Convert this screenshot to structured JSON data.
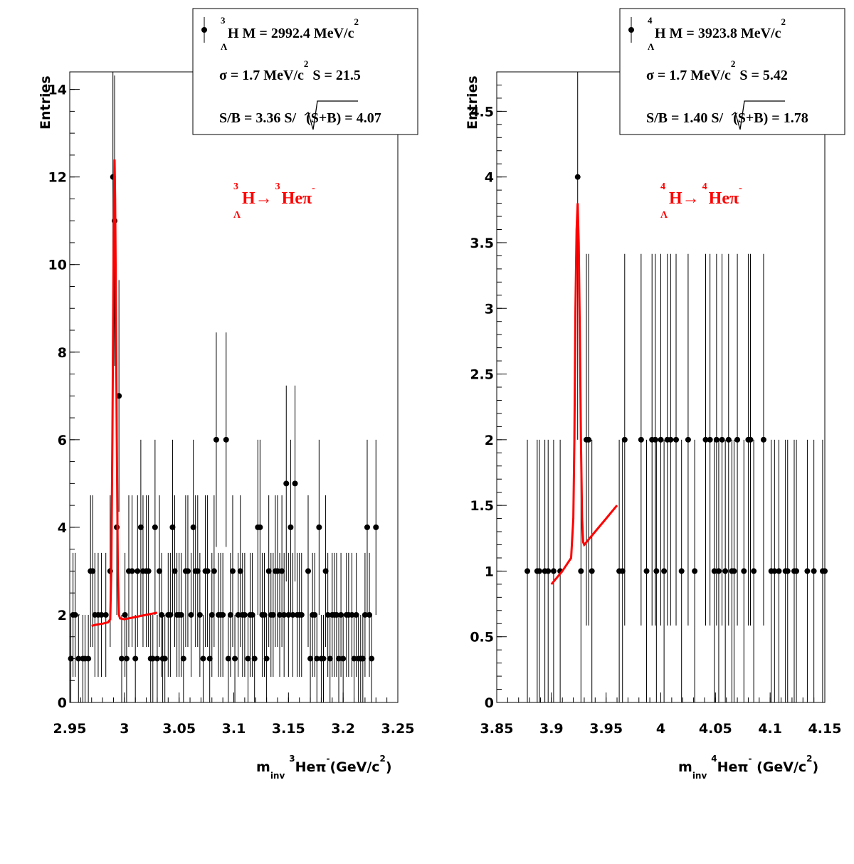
{
  "colors": {
    "data": "#000000",
    "fit": "#ff0000",
    "background": "#ffffff"
  },
  "chart_data": [
    {
      "type": "scatter",
      "ylabel": "Entries",
      "xlabel": {
        "main": "m",
        "sub": "inv",
        "sup1": "3",
        "mid": "Heπ",
        "sup2": "-",
        "tail": "(GeV/c",
        "sup3": "2",
        "end": ")"
      },
      "xlim": [
        2.95,
        3.25
      ],
      "ylim": [
        0,
        14.4
      ],
      "xticks": [
        "2.95",
        "3",
        "3.05",
        "3.1",
        "3.15",
        "3.2",
        "3.25"
      ],
      "yticks": [
        "0",
        "2",
        "4",
        "6",
        "8",
        "10",
        "12",
        "14"
      ],
      "grid": false,
      "legend": {
        "position": "top-right",
        "line1": {
          "sup": "3",
          "sub": "Λ",
          "text": "H M = 2992.4 MeV/c",
          "sup2": "2"
        },
        "line2": {
          "text": "σ = 1.7 MeV/c",
          "sup": "2",
          "tail": "S = 21.5"
        },
        "line3": {
          "a": "S/B = 3.36  S/",
          "b": "(S+B)",
          "c": " = 4.07"
        }
      },
      "annotation": {
        "sup1": "3",
        "sub": "Λ",
        "t1": "H→",
        "sup2": "3",
        "t2": "Heπ",
        "sup3": "-"
      },
      "points": [
        [
          2.951,
          1
        ],
        [
          2.953,
          2
        ],
        [
          2.955,
          2
        ],
        [
          2.958,
          1
        ],
        [
          2.962,
          1
        ],
        [
          2.964,
          1
        ],
        [
          2.967,
          1
        ],
        [
          2.969,
          3
        ],
        [
          2.971,
          3
        ],
        [
          2.973,
          2
        ],
        [
          2.976,
          2
        ],
        [
          2.979,
          2
        ],
        [
          2.983,
          2
        ],
        [
          2.987,
          3
        ],
        [
          2.9895,
          12
        ],
        [
          2.991,
          11
        ],
        [
          2.993,
          4
        ],
        [
          2.995,
          7
        ],
        [
          2.9975,
          1
        ],
        [
          3.0005,
          2
        ],
        [
          3.002,
          1
        ],
        [
          3.004,
          3
        ],
        [
          3.007,
          3
        ],
        [
          3.01,
          1
        ],
        [
          3.012,
          3
        ],
        [
          3.015,
          4
        ],
        [
          3.017,
          3
        ],
        [
          3.02,
          3
        ],
        [
          3.022,
          3
        ],
        [
          3.024,
          1
        ],
        [
          3.026,
          1
        ],
        [
          3.028,
          4
        ],
        [
          3.03,
          1
        ],
        [
          3.032,
          3
        ],
        [
          3.034,
          2
        ],
        [
          3.035,
          1
        ],
        [
          3.037,
          1
        ],
        [
          3.04,
          2
        ],
        [
          3.042,
          2
        ],
        [
          3.044,
          4
        ],
        [
          3.046,
          3
        ],
        [
          3.048,
          2
        ],
        [
          3.05,
          2
        ],
        [
          3.052,
          2
        ],
        [
          3.054,
          1
        ],
        [
          3.056,
          3
        ],
        [
          3.058,
          3
        ],
        [
          3.061,
          2
        ],
        [
          3.063,
          4
        ],
        [
          3.065,
          3
        ],
        [
          3.067,
          3
        ],
        [
          3.069,
          2
        ],
        [
          3.072,
          1
        ],
        [
          3.074,
          3
        ],
        [
          3.076,
          3
        ],
        [
          3.078,
          1
        ],
        [
          3.08,
          2
        ],
        [
          3.082,
          3
        ],
        [
          3.084,
          6
        ],
        [
          3.086,
          2
        ],
        [
          3.088,
          2
        ],
        [
          3.09,
          2
        ],
        [
          3.093,
          6
        ],
        [
          3.095,
          1
        ],
        [
          3.097,
          2
        ],
        [
          3.099,
          3
        ],
        [
          3.101,
          1
        ],
        [
          3.104,
          2
        ],
        [
          3.106,
          3
        ],
        [
          3.108,
          2
        ],
        [
          3.11,
          2
        ],
        [
          3.113,
          1
        ],
        [
          3.115,
          2
        ],
        [
          3.117,
          2
        ],
        [
          3.119,
          1
        ],
        [
          3.122,
          4
        ],
        [
          3.124,
          4
        ],
        [
          3.126,
          2
        ],
        [
          3.128,
          2
        ],
        [
          3.13,
          1
        ],
        [
          3.132,
          3
        ],
        [
          3.134,
          2
        ],
        [
          3.136,
          2
        ],
        [
          3.138,
          3
        ],
        [
          3.14,
          3
        ],
        [
          3.142,
          2
        ],
        [
          3.144,
          3
        ],
        [
          3.146,
          2
        ],
        [
          3.148,
          5
        ],
        [
          3.15,
          2
        ],
        [
          3.152,
          4
        ],
        [
          3.154,
          2
        ],
        [
          3.156,
          5
        ],
        [
          3.158,
          2
        ],
        [
          3.16,
          2
        ],
        [
          3.162,
          2
        ],
        [
          3.168,
          3
        ],
        [
          3.17,
          1
        ],
        [
          3.172,
          2
        ],
        [
          3.174,
          2
        ],
        [
          3.176,
          1
        ],
        [
          3.178,
          4
        ],
        [
          3.18,
          1
        ],
        [
          3.182,
          1
        ],
        [
          3.184,
          3
        ],
        [
          3.186,
          2
        ],
        [
          3.188,
          1
        ],
        [
          3.19,
          2
        ],
        [
          3.192,
          2
        ],
        [
          3.194,
          2
        ],
        [
          3.196,
          1
        ],
        [
          3.198,
          2
        ],
        [
          3.2,
          1
        ],
        [
          3.203,
          2
        ],
        [
          3.205,
          2
        ],
        [
          3.208,
          2
        ],
        [
          3.21,
          1
        ],
        [
          3.212,
          2
        ],
        [
          3.214,
          1
        ],
        [
          3.216,
          1
        ],
        [
          3.218,
          1
        ],
        [
          3.22,
          2
        ],
        [
          3.222,
          4
        ],
        [
          3.224,
          2
        ],
        [
          3.226,
          1
        ],
        [
          3.23,
          4
        ]
      ],
      "fit": [
        [
          2.97,
          1.75
        ],
        [
          2.975,
          1.78
        ],
        [
          2.98,
          1.8
        ],
        [
          2.985,
          1.83
        ],
        [
          2.987,
          1.9
        ],
        [
          2.988,
          3
        ],
        [
          2.989,
          6
        ],
        [
          2.99,
          10
        ],
        [
          2.9905,
          11.5
        ],
        [
          2.991,
          12.4
        ],
        [
          2.9915,
          11.5
        ],
        [
          2.992,
          10
        ],
        [
          2.993,
          6
        ],
        [
          2.994,
          3
        ],
        [
          2.995,
          2
        ],
        [
          2.996,
          1.92
        ],
        [
          3.0,
          1.9
        ],
        [
          3.01,
          1.95
        ],
        [
          3.02,
          2.0
        ],
        [
          3.03,
          2.05
        ]
      ]
    },
    {
      "type": "scatter",
      "ylabel": "Entries",
      "xlabel": {
        "main": "m",
        "sub": "inv",
        "sup1": "4",
        "mid": "Heπ",
        "sup2": "-",
        "tail": " (GeV/c",
        "sup3": "2",
        "end": ")"
      },
      "xlim": [
        3.85,
        4.15
      ],
      "ylim": [
        0,
        4.8
      ],
      "xticks": [
        "3.85",
        "3.9",
        "3.95",
        "4",
        "4.05",
        "4.1",
        "4.15"
      ],
      "yticks": [
        "0",
        "0.5",
        "1",
        "1.5",
        "2",
        "2.5",
        "3",
        "3.5",
        "4",
        "4.5"
      ],
      "grid": false,
      "legend": {
        "position": "top-right",
        "line1": {
          "sup": "4",
          "sub": "Λ",
          "text": "H M = 3923.8 MeV/c",
          "sup2": "2"
        },
        "line2": {
          "text": "σ = 1.7 MeV/c",
          "sup": "2",
          "tail": "S = 5.42"
        },
        "line3": {
          "a": "S/B = 1.40  S/",
          "b": "(S+B)",
          "c": " = 1.78"
        }
      },
      "annotation": {
        "sup1": "4",
        "sub": "Λ",
        "t1": "H→",
        "sup2": "4",
        "t2": "Heπ",
        "sup3": "-"
      },
      "points": [
        [
          3.878,
          1
        ],
        [
          3.887,
          1
        ],
        [
          3.889,
          1
        ],
        [
          3.894,
          1
        ],
        [
          3.897,
          1
        ],
        [
          3.902,
          1
        ],
        [
          3.908,
          1
        ],
        [
          3.924,
          4
        ],
        [
          3.927,
          1
        ],
        [
          3.932,
          2
        ],
        [
          3.934,
          2
        ],
        [
          3.937,
          1
        ],
        [
          3.962,
          1
        ],
        [
          3.965,
          1
        ],
        [
          3.967,
          2
        ],
        [
          3.982,
          2
        ],
        [
          3.987,
          1
        ],
        [
          3.992,
          2
        ],
        [
          3.995,
          2
        ],
        [
          3.996,
          1
        ],
        [
          4.0,
          2
        ],
        [
          4.003,
          1
        ],
        [
          4.006,
          2
        ],
        [
          4.009,
          2
        ],
        [
          4.014,
          2
        ],
        [
          4.019,
          1
        ],
        [
          4.025,
          2
        ],
        [
          4.031,
          1
        ],
        [
          4.041,
          2
        ],
        [
          4.045,
          2
        ],
        [
          4.049,
          1
        ],
        [
          4.051,
          2
        ],
        [
          4.053,
          1
        ],
        [
          4.056,
          2
        ],
        [
          4.059,
          1
        ],
        [
          4.062,
          2
        ],
        [
          4.065,
          1
        ],
        [
          4.067,
          1
        ],
        [
          4.07,
          2
        ],
        [
          4.076,
          1
        ],
        [
          4.08,
          2
        ],
        [
          4.082,
          2
        ],
        [
          4.085,
          1
        ],
        [
          4.094,
          2
        ],
        [
          4.101,
          1
        ],
        [
          4.104,
          1
        ],
        [
          4.108,
          1
        ],
        [
          4.114,
          1
        ],
        [
          4.116,
          1
        ],
        [
          4.122,
          1
        ],
        [
          4.124,
          1
        ],
        [
          4.134,
          1
        ],
        [
          4.14,
          1
        ],
        [
          4.148,
          1
        ],
        [
          4.15,
          1
        ]
      ],
      "fit": [
        [
          3.9,
          0.9
        ],
        [
          3.91,
          1.0
        ],
        [
          3.918,
          1.1
        ],
        [
          3.92,
          1.4
        ],
        [
          3.921,
          2.0
        ],
        [
          3.922,
          3.0
        ],
        [
          3.923,
          3.6
        ],
        [
          3.924,
          3.8
        ],
        [
          3.925,
          3.5
        ],
        [
          3.926,
          2.8
        ],
        [
          3.927,
          2.0
        ],
        [
          3.928,
          1.4
        ],
        [
          3.929,
          1.22
        ],
        [
          3.93,
          1.2
        ],
        [
          3.94,
          1.3
        ],
        [
          3.95,
          1.4
        ],
        [
          3.96,
          1.5
        ]
      ]
    }
  ]
}
